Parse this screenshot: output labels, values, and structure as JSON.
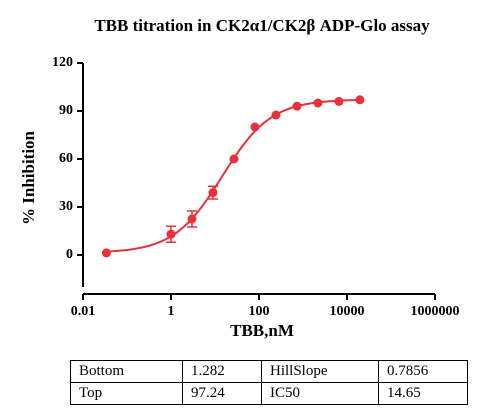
{
  "chart_data": {
    "type": "scatter",
    "title": "TBB titration  in CK2α1/CK2β ADP-Glo assay",
    "x_label": "TBB,nM",
    "y_label": "% Inhibition",
    "x": [
      0.034,
      1,
      3,
      9,
      27,
      81,
      243,
      729,
      2187,
      6561,
      19683
    ],
    "values": [
      1.3,
      13,
      22.5,
      39,
      60,
      80,
      87.5,
      93,
      95,
      96,
      97
    ],
    "errors": [
      null,
      5,
      5,
      4,
      null,
      null,
      null,
      null,
      null,
      null,
      null
    ],
    "color": "#e8313a",
    "x_log": true,
    "xlim": [
      0.01,
      1000000
    ],
    "xticks": [
      0.01,
      1,
      100,
      10000,
      1000000
    ],
    "ylim": [
      -20,
      120
    ],
    "yticks": [
      0,
      30,
      60,
      90,
      120
    ]
  },
  "table": {
    "rows": [
      [
        "Bottom",
        1.282,
        "HillSlope",
        0.7856
      ],
      [
        "Top",
        97.24,
        "IC50",
        14.65
      ]
    ]
  }
}
